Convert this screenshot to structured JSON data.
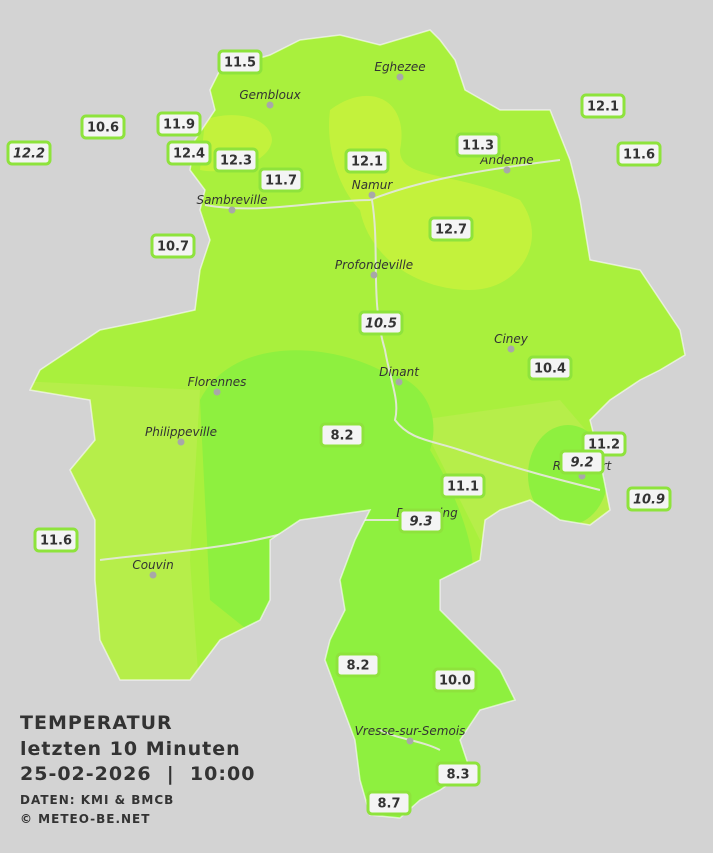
{
  "header": {
    "title": "TEMPERATUR",
    "subtitle": "letzten 10 Minuten",
    "timestamp": "25-02-2026  |  10:00",
    "source": "DATEN: KMI & BMCB",
    "copyright": "© METEO-BE.NET"
  },
  "cities": [
    "Eghezee",
    "Gembloux",
    "Andenne",
    "Namur",
    "Sambreville",
    "Profondeville",
    "Ciney",
    "Dinant",
    "Florennes",
    "Philippeville",
    "Rochefort",
    "Beauraing",
    "Couvin",
    "Vresse-sur-Semois"
  ],
  "stations": [
    {
      "label": "11.5"
    },
    {
      "label": "10.6"
    },
    {
      "label": "11.9"
    },
    {
      "label": "12.2",
      "italic": true
    },
    {
      "label": "12.4"
    },
    {
      "label": "12.3"
    },
    {
      "label": "11.7"
    },
    {
      "label": "12.1"
    },
    {
      "label": "11.3"
    },
    {
      "label": "12.1"
    },
    {
      "label": "11.6"
    },
    {
      "label": "12.7"
    },
    {
      "label": "10.7"
    },
    {
      "label": "10.5",
      "italic": true
    },
    {
      "label": "10.4"
    },
    {
      "label": "8.2"
    },
    {
      "label": "11.2"
    },
    {
      "label": "9.2",
      "italic": true
    },
    {
      "label": "11.1"
    },
    {
      "label": "10.9",
      "italic": true
    },
    {
      "label": "9.3",
      "italic": true
    },
    {
      "label": "11.6"
    },
    {
      "label": "8.2"
    },
    {
      "label": "10.0"
    },
    {
      "label": "8.3"
    },
    {
      "label": "8.7"
    }
  ]
}
